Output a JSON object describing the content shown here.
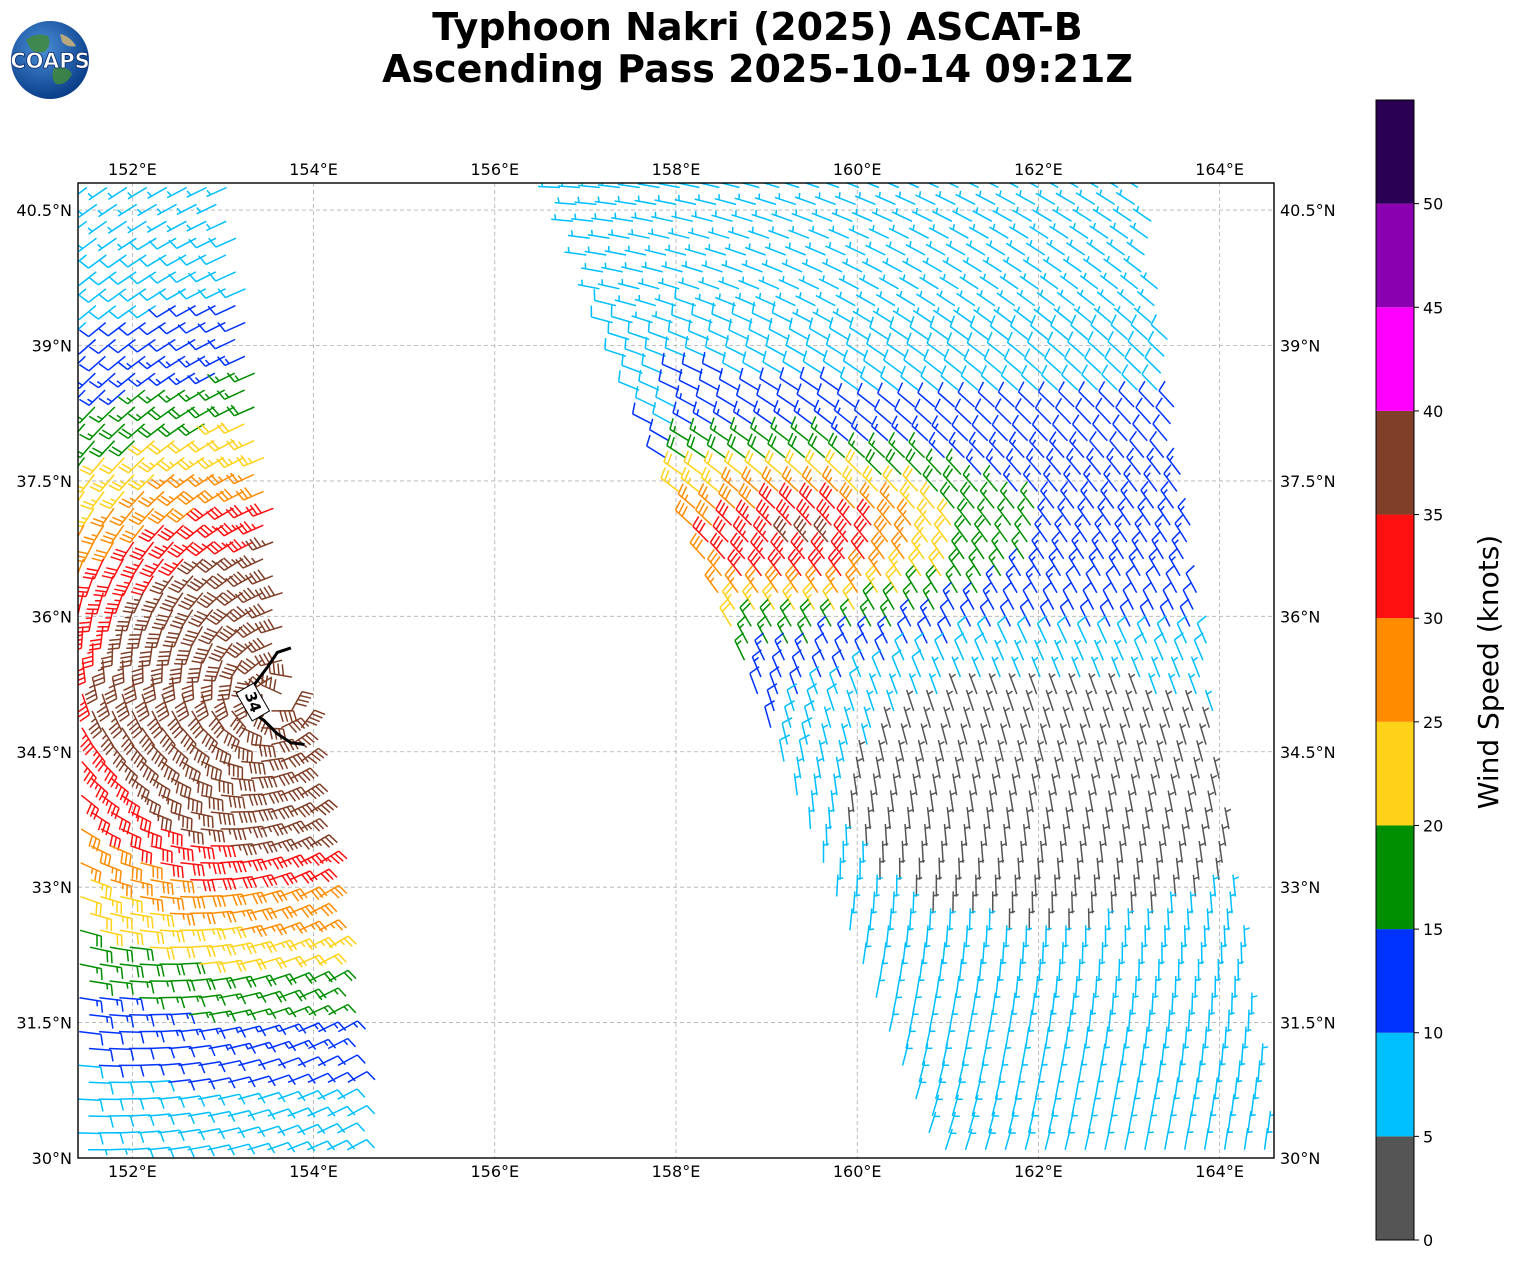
{
  "title": {
    "line1": "Typhoon Nakri (2025) ASCAT-B",
    "line2": "Ascending Pass 2025-10-14 09:21Z"
  },
  "logo": {
    "text": "COAPS",
    "icon": "earth-globe-icon"
  },
  "map": {
    "lon_range": [
      151.4,
      164.6
    ],
    "lat_range": [
      30.0,
      40.8
    ],
    "lon_ticks": [
      152,
      154,
      156,
      158,
      160,
      162,
      164
    ],
    "lon_tick_labels": [
      "152°E",
      "154°E",
      "156°E",
      "158°E",
      "160°E",
      "162°E",
      "164°E"
    ],
    "lat_ticks": [
      30,
      31.5,
      33,
      34.5,
      36,
      37.5,
      39,
      40.5
    ],
    "lat_tick_labels": [
      "30°N",
      "31.5°N",
      "33°N",
      "34.5°N",
      "36°N",
      "37.5°N",
      "39°N",
      "40.5°N"
    ],
    "gridlines": true,
    "storm_contour": {
      "label": "34",
      "color": "#000000"
    },
    "swaths": [
      {
        "name": "west-swath",
        "edges_top": [
          151.5,
          153.1
        ],
        "edges_bottom": [
          151.4,
          154.5
        ]
      },
      {
        "name": "east-swath",
        "edges_top": [
          156.7,
          163.2
        ],
        "edges_bottom": [
          160.9,
          164.6
        ]
      }
    ]
  },
  "colorbar": {
    "label": "Wind Speed (knots)",
    "ticks": [
      0,
      5,
      10,
      15,
      20,
      25,
      30,
      35,
      40,
      45,
      50
    ],
    "tick_labels": [
      "0",
      "5",
      "10",
      "15",
      "20",
      "25",
      "30",
      "35",
      "40",
      "45",
      "50"
    ],
    "range": [
      0,
      55
    ],
    "bins": [
      {
        "min": 0,
        "max": 5,
        "color": "#555555"
      },
      {
        "min": 5,
        "max": 10,
        "color": "#00bfff"
      },
      {
        "min": 10,
        "max": 15,
        "color": "#0033ff"
      },
      {
        "min": 15,
        "max": 20,
        "color": "#008f00"
      },
      {
        "min": 20,
        "max": 25,
        "color": "#ffd21a"
      },
      {
        "min": 25,
        "max": 30,
        "color": "#ff8c00"
      },
      {
        "min": 30,
        "max": 35,
        "color": "#ff1010"
      },
      {
        "min": 35,
        "max": 40,
        "color": "#7f3f28"
      },
      {
        "min": 40,
        "max": 45,
        "color": "#ff00ff"
      },
      {
        "min": 45,
        "max": 50,
        "color": "#8a00b0"
      },
      {
        "min": 50,
        "max": 55,
        "color": "#2a0055"
      }
    ]
  }
}
